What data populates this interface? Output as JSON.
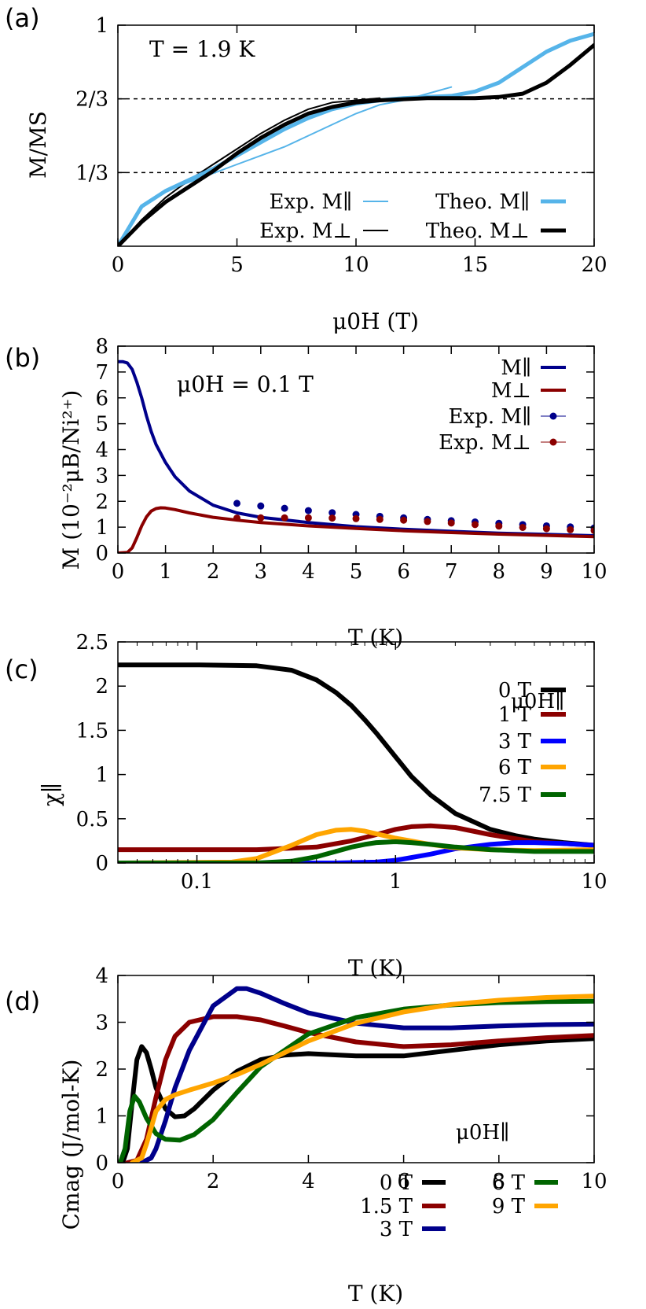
{
  "colors": {
    "sky": "#56b4e9",
    "black": "#000000",
    "navy": "#00008b",
    "darkred": "#8b0000",
    "blue": "#0000ff",
    "orange": "#ffa500",
    "green": "#006400"
  },
  "chart_data": [
    {
      "panel_label": "(a)",
      "type": "line",
      "annotation": "T = 1.9 K",
      "xlabel": "μ0H (T)",
      "ylabel": "M/MS",
      "xlim": [
        0,
        20
      ],
      "ylim": [
        0,
        1
      ],
      "xticks": [
        {
          "v": 0,
          "label": "0"
        },
        {
          "v": 5,
          "label": "5"
        },
        {
          "v": 10,
          "label": "10"
        },
        {
          "v": 15,
          "label": "15"
        },
        {
          "v": 20,
          "label": "20"
        }
      ],
      "yticks": [
        {
          "v": 0.3333,
          "label": "1/3"
        },
        {
          "v": 0.6667,
          "label": "2/3"
        },
        {
          "v": 1,
          "label": "1"
        }
      ],
      "ref_lines": [
        0.3333,
        0.6667
      ],
      "series": [
        {
          "name": "Exp. M∥",
          "color": "sky",
          "width": 2,
          "x": [
            0,
            1,
            2,
            3,
            4,
            5,
            6,
            7,
            8,
            9,
            10,
            11,
            12,
            13,
            14
          ],
          "y": [
            0,
            0.18,
            0.25,
            0.29,
            0.33,
            0.37,
            0.41,
            0.45,
            0.5,
            0.55,
            0.6,
            0.64,
            0.66,
            0.69,
            0.72
          ]
        },
        {
          "name": "Exp. M⊥",
          "color": "black",
          "width": 2,
          "x": [
            0,
            1,
            2,
            3,
            4,
            5,
            6,
            7,
            8,
            9,
            10,
            11
          ],
          "y": [
            0,
            0.12,
            0.22,
            0.3,
            0.37,
            0.44,
            0.51,
            0.57,
            0.62,
            0.65,
            0.66,
            0.67
          ]
        },
        {
          "name": "Theo. M∥",
          "color": "sky",
          "width": 5,
          "x": [
            0,
            1,
            2,
            3,
            4,
            5,
            6,
            7,
            8,
            9,
            10,
            11,
            12,
            13,
            14,
            15,
            16,
            17,
            18,
            19,
            20
          ],
          "y": [
            0,
            0.18,
            0.25,
            0.3,
            0.35,
            0.41,
            0.47,
            0.53,
            0.58,
            0.62,
            0.645,
            0.66,
            0.67,
            0.675,
            0.68,
            0.7,
            0.74,
            0.81,
            0.88,
            0.93,
            0.96
          ]
        },
        {
          "name": "Theo. M⊥",
          "color": "black",
          "width": 5,
          "x": [
            0,
            1,
            2,
            3,
            4,
            5,
            6,
            7,
            8,
            9,
            10,
            11,
            12,
            13,
            14,
            15,
            16,
            17,
            18,
            19,
            20
          ],
          "y": [
            0,
            0.11,
            0.2,
            0.27,
            0.34,
            0.42,
            0.49,
            0.55,
            0.6,
            0.63,
            0.65,
            0.66,
            0.665,
            0.67,
            0.67,
            0.67,
            0.675,
            0.69,
            0.74,
            0.82,
            0.91
          ]
        }
      ],
      "legend": [
        {
          "label": "Exp.  M∥",
          "color": "sky",
          "width": 2
        },
        {
          "label": "Theo.  M∥",
          "color": "sky",
          "width": 5
        },
        {
          "label": "Exp.  M⊥",
          "color": "black",
          "width": 2
        },
        {
          "label": "Theo.  M⊥",
          "color": "black",
          "width": 5
        }
      ]
    },
    {
      "panel_label": "(b)",
      "type": "line",
      "annotation": "μ0H = 0.1 T",
      "xlabel": "T (K)",
      "ylabel": "M (10⁻²μB/Ni²⁺)",
      "xlim": [
        0,
        10
      ],
      "ylim": [
        0,
        8
      ],
      "xticks": [
        {
          "v": 0,
          "label": "0"
        },
        {
          "v": 1,
          "label": "1"
        },
        {
          "v": 2,
          "label": "2"
        },
        {
          "v": 3,
          "label": "3"
        },
        {
          "v": 4,
          "label": "4"
        },
        {
          "v": 5,
          "label": "5"
        },
        {
          "v": 6,
          "label": "6"
        },
        {
          "v": 7,
          "label": "7"
        },
        {
          "v": 8,
          "label": "8"
        },
        {
          "v": 9,
          "label": "9"
        },
        {
          "v": 10,
          "label": "10"
        }
      ],
      "yticks": [
        {
          "v": 0,
          "label": "0"
        },
        {
          "v": 1,
          "label": "1"
        },
        {
          "v": 2,
          "label": "2"
        },
        {
          "v": 3,
          "label": "3"
        },
        {
          "v": 4,
          "label": "4"
        },
        {
          "v": 5,
          "label": "5"
        },
        {
          "v": 6,
          "label": "6"
        },
        {
          "v": 7,
          "label": "7"
        },
        {
          "v": 8,
          "label": "8"
        }
      ],
      "series": [
        {
          "name": "M∥",
          "color": "navy",
          "width": 4,
          "x": [
            0,
            0.1,
            0.2,
            0.3,
            0.4,
            0.5,
            0.6,
            0.7,
            0.8,
            1.0,
            1.2,
            1.5,
            2.0,
            2.5,
            3,
            4,
            5,
            6,
            7,
            8,
            9,
            10
          ],
          "y": [
            7.4,
            7.4,
            7.35,
            7.1,
            6.6,
            6.0,
            5.3,
            4.7,
            4.2,
            3.5,
            2.95,
            2.4,
            1.85,
            1.55,
            1.38,
            1.18,
            1.02,
            0.92,
            0.84,
            0.77,
            0.72,
            0.67
          ]
        },
        {
          "name": "M⊥",
          "color": "darkred",
          "width": 4,
          "x": [
            0,
            0.2,
            0.3,
            0.4,
            0.5,
            0.6,
            0.7,
            0.8,
            0.9,
            1.0,
            1.2,
            1.5,
            2.0,
            2.5,
            3,
            4,
            5,
            6,
            7,
            8,
            9,
            10
          ],
          "y": [
            0,
            0.02,
            0.2,
            0.6,
            1.05,
            1.4,
            1.62,
            1.72,
            1.75,
            1.74,
            1.68,
            1.55,
            1.38,
            1.27,
            1.18,
            1.05,
            0.95,
            0.86,
            0.79,
            0.73,
            0.68,
            0.63
          ]
        },
        {
          "name": "Exp. M∥",
          "color": "navy",
          "marker": true,
          "x": [
            2.5,
            3,
            3.5,
            4,
            4.5,
            5,
            5.5,
            6,
            6.5,
            7,
            7.5,
            8,
            8.5,
            9,
            9.5,
            10
          ],
          "y": [
            1.92,
            1.82,
            1.73,
            1.64,
            1.56,
            1.49,
            1.42,
            1.36,
            1.3,
            1.25,
            1.2,
            1.15,
            1.1,
            1.05,
            1.01,
            0.97
          ]
        },
        {
          "name": "Exp. M⊥",
          "color": "darkred",
          "marker": true,
          "x": [
            2.5,
            3,
            3.5,
            4,
            4.5,
            5,
            5.5,
            6,
            6.5,
            7,
            7.5,
            8,
            8.5,
            9,
            9.5,
            10
          ],
          "y": [
            1.35,
            1.36,
            1.36,
            1.36,
            1.35,
            1.33,
            1.3,
            1.27,
            1.22,
            1.16,
            1.1,
            1.04,
            0.99,
            0.94,
            0.9,
            0.87
          ]
        }
      ],
      "legend": [
        {
          "label": "M∥",
          "color": "navy",
          "width": 4
        },
        {
          "label": "M⊥",
          "color": "darkred",
          "width": 4
        },
        {
          "label": "Exp.  M∥",
          "color": "navy",
          "marker": true
        },
        {
          "label": "Exp.  M⊥",
          "color": "darkred",
          "marker": true
        }
      ]
    },
    {
      "panel_label": "(c)",
      "type": "line",
      "xscale": "log",
      "xlabel": "T (K)",
      "ylabel": "χ∥",
      "xlim": [
        0.04,
        10
      ],
      "ylim": [
        0,
        2.5
      ],
      "xticks": [
        {
          "v": 0.1,
          "label": "0.1"
        },
        {
          "v": 1,
          "label": "1"
        },
        {
          "v": 10,
          "label": "10"
        }
      ],
      "yticks": [
        {
          "v": 0,
          "label": "0"
        },
        {
          "v": 0.5,
          "label": "0.5"
        },
        {
          "v": 1,
          "label": "1"
        },
        {
          "v": 1.5,
          "label": "1.5"
        },
        {
          "v": 2,
          "label": "2"
        },
        {
          "v": 2.5,
          "label": "2.5"
        }
      ],
      "legend_title": "μ0H∥",
      "series": [
        {
          "name": "0 T",
          "color": "black",
          "width": 6,
          "x": [
            0.04,
            0.1,
            0.2,
            0.3,
            0.4,
            0.5,
            0.6,
            0.7,
            0.8,
            1.0,
            1.2,
            1.5,
            2,
            3,
            4,
            5,
            7,
            10
          ],
          "y": [
            2.24,
            2.24,
            2.23,
            2.18,
            2.07,
            1.93,
            1.78,
            1.62,
            1.47,
            1.2,
            0.98,
            0.77,
            0.56,
            0.38,
            0.31,
            0.27,
            0.23,
            0.2
          ]
        },
        {
          "name": "1 T",
          "color": "darkred",
          "width": 6,
          "x": [
            0.04,
            0.2,
            0.4,
            0.6,
            0.8,
            1.0,
            1.2,
            1.5,
            2,
            3,
            5,
            10
          ],
          "y": [
            0.15,
            0.15,
            0.18,
            0.25,
            0.32,
            0.38,
            0.41,
            0.42,
            0.4,
            0.32,
            0.24,
            0.2
          ]
        },
        {
          "name": "3 T",
          "color": "blue",
          "width": 6,
          "x": [
            0.04,
            0.5,
            0.8,
            1.0,
            1.5,
            2,
            3,
            4,
            5,
            7,
            10
          ],
          "y": [
            0,
            0,
            0.01,
            0.03,
            0.1,
            0.16,
            0.21,
            0.23,
            0.23,
            0.22,
            0.2
          ]
        },
        {
          "name": "6 T",
          "color": "orange",
          "width": 6,
          "x": [
            0.04,
            0.15,
            0.2,
            0.3,
            0.4,
            0.5,
            0.6,
            0.7,
            0.8,
            1.0,
            1.5,
            2,
            3,
            5,
            10
          ],
          "y": [
            0,
            0.01,
            0.05,
            0.2,
            0.32,
            0.37,
            0.38,
            0.36,
            0.33,
            0.28,
            0.21,
            0.17,
            0.15,
            0.14,
            0.15
          ]
        },
        {
          "name": "7.5 T",
          "color": "green",
          "width": 6,
          "x": [
            0.04,
            0.2,
            0.3,
            0.4,
            0.5,
            0.6,
            0.7,
            0.8,
            1.0,
            1.2,
            1.5,
            2,
            3,
            5,
            10
          ],
          "y": [
            0,
            0,
            0.02,
            0.07,
            0.13,
            0.18,
            0.21,
            0.23,
            0.24,
            0.23,
            0.21,
            0.18,
            0.15,
            0.13,
            0.13
          ]
        }
      ],
      "legend": [
        {
          "label": "0 T",
          "color": "black",
          "width": 6
        },
        {
          "label": "1 T",
          "color": "darkred",
          "width": 6
        },
        {
          "label": "3 T",
          "color": "blue",
          "width": 6
        },
        {
          "label": "6 T",
          "color": "orange",
          "width": 6
        },
        {
          "label": "7.5 T",
          "color": "green",
          "width": 6
        }
      ]
    },
    {
      "panel_label": "(d)",
      "type": "line",
      "xlabel": "T (K)",
      "ylabel": "Cmag (J/mol-K)",
      "xlim": [
        0,
        10
      ],
      "ylim": [
        0,
        4
      ],
      "xticks": [
        {
          "v": 0,
          "label": "0"
        },
        {
          "v": 2,
          "label": "2"
        },
        {
          "v": 4,
          "label": "4"
        },
        {
          "v": 6,
          "label": "6"
        },
        {
          "v": 8,
          "label": "8"
        },
        {
          "v": 10,
          "label": "10"
        }
      ],
      "yticks": [
        {
          "v": 0,
          "label": "0"
        },
        {
          "v": 1,
          "label": "1"
        },
        {
          "v": 2,
          "label": "2"
        },
        {
          "v": 3,
          "label": "3"
        },
        {
          "v": 4,
          "label": "4"
        }
      ],
      "legend_title": "μ0H∥",
      "series": [
        {
          "name": "0 T",
          "color": "black",
          "width": 6,
          "x": [
            0.1,
            0.2,
            0.3,
            0.4,
            0.5,
            0.6,
            0.7,
            0.8,
            1.0,
            1.2,
            1.4,
            1.6,
            2,
            2.5,
            3,
            3.5,
            4,
            5,
            6,
            7,
            8,
            9,
            10
          ],
          "y": [
            0,
            0.3,
            1.3,
            2.2,
            2.48,
            2.35,
            2.0,
            1.6,
            1.15,
            0.98,
            1.0,
            1.15,
            1.55,
            1.95,
            2.2,
            2.3,
            2.33,
            2.28,
            2.28,
            2.4,
            2.52,
            2.6,
            2.65
          ]
        },
        {
          "name": "1.5 T",
          "color": "darkred",
          "width": 6,
          "x": [
            0.2,
            0.4,
            0.6,
            0.8,
            1.0,
            1.2,
            1.5,
            2,
            2.5,
            3,
            3.5,
            4,
            5,
            6,
            7,
            8,
            9,
            10
          ],
          "y": [
            0,
            0.05,
            0.5,
            1.4,
            2.2,
            2.7,
            3.0,
            3.12,
            3.12,
            3.05,
            2.92,
            2.78,
            2.58,
            2.48,
            2.52,
            2.6,
            2.67,
            2.72
          ]
        },
        {
          "name": "3 T",
          "color": "navy",
          "width": 6,
          "x": [
            0.5,
            0.7,
            0.8,
            1.0,
            1.2,
            1.5,
            2,
            2.5,
            2.7,
            3,
            3.5,
            4,
            5,
            6,
            7,
            8,
            9,
            10
          ],
          "y": [
            0,
            0.1,
            0.3,
            0.9,
            1.6,
            2.4,
            3.35,
            3.72,
            3.72,
            3.62,
            3.4,
            3.2,
            2.98,
            2.88,
            2.88,
            2.92,
            2.95,
            2.96
          ]
        },
        {
          "name": "6 T",
          "color": "green",
          "width": 6,
          "x": [
            0.05,
            0.15,
            0.25,
            0.35,
            0.45,
            0.6,
            0.8,
            1.0,
            1.3,
            1.6,
            2,
            2.5,
            3,
            4,
            5,
            6,
            7,
            8,
            9,
            10
          ],
          "y": [
            0,
            0.3,
            1.1,
            1.42,
            1.3,
            0.95,
            0.62,
            0.5,
            0.48,
            0.6,
            0.92,
            1.5,
            2.05,
            2.75,
            3.1,
            3.28,
            3.37,
            3.42,
            3.44,
            3.45
          ]
        },
        {
          "name": "9 T",
          "color": "orange",
          "width": 6,
          "x": [
            0.3,
            0.5,
            0.6,
            0.8,
            1.0,
            1.2,
            1.5,
            2,
            2.5,
            3,
            4,
            5,
            6,
            7,
            8,
            9,
            10
          ],
          "y": [
            0,
            0.1,
            0.4,
            1.1,
            1.35,
            1.45,
            1.55,
            1.7,
            1.88,
            2.1,
            2.6,
            2.98,
            3.22,
            3.38,
            3.47,
            3.53,
            3.56
          ]
        }
      ],
      "legend": [
        {
          "label": "0 T",
          "color": "black",
          "width": 6
        },
        {
          "label": "6 T",
          "color": "green",
          "width": 6
        },
        {
          "label": "1.5 T",
          "color": "darkred",
          "width": 6
        },
        {
          "label": "9 T",
          "color": "orange",
          "width": 6
        },
        {
          "label": "3 T",
          "color": "navy",
          "width": 6
        }
      ]
    }
  ]
}
